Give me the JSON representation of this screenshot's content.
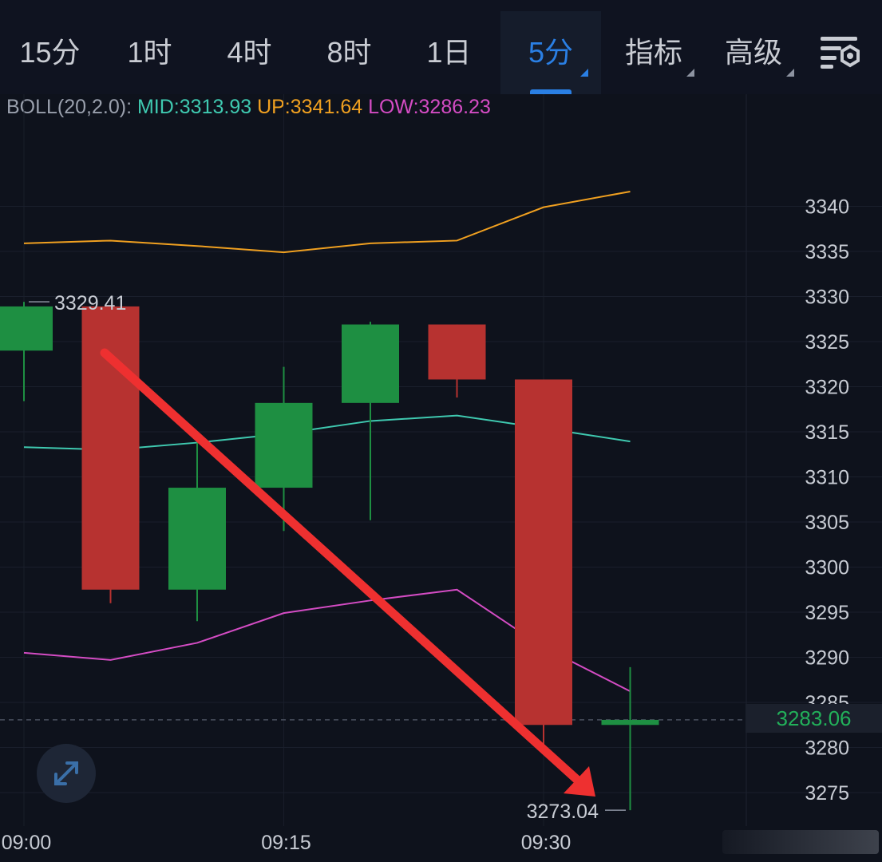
{
  "toolbar": {
    "tabs": [
      {
        "label": "15分",
        "active": false
      },
      {
        "label": "1时",
        "active": false
      },
      {
        "label": "4时",
        "active": false
      },
      {
        "label": "8时",
        "active": false
      },
      {
        "label": "1日",
        "active": false
      },
      {
        "label": "5分",
        "active": true
      },
      {
        "label": "指标",
        "active": false
      },
      {
        "label": "高级",
        "active": false
      }
    ],
    "settings_icon": "chart-settings-icon"
  },
  "indicator": {
    "name": "BOLL(20,2.0):",
    "mid_label": "MID:3313.93",
    "up_label": "UP:3341.64",
    "low_label": "LOW:3286.23"
  },
  "colors": {
    "up_candle": "#1e8f42",
    "down_candle": "#b73230",
    "mid": "#3fc9b0",
    "upper": "#f0a020",
    "lower": "#d44cc4",
    "arrow": "#ee3030",
    "active_tab": "#2a7fe4",
    "last_price": "#22b05a"
  },
  "chart_data": {
    "type": "candlestick",
    "time_labels": [
      "09:00",
      "09:15",
      "09:30"
    ],
    "y_ticks": [
      3275,
      3280,
      3285,
      3290,
      3295,
      3300,
      3305,
      3310,
      3315,
      3320,
      3325,
      3330,
      3335,
      3340
    ],
    "ylim": [
      3270.5,
      3341.5
    ],
    "candles": [
      {
        "time": "09:00",
        "open": 3324.0,
        "close": 3328.9,
        "high": 3329.41,
        "low": 3318.4
      },
      {
        "time": "09:05",
        "open": 3328.9,
        "close": 3297.5,
        "high": 3328.9,
        "low": 3296.0
      },
      {
        "time": "09:10",
        "open": 3297.5,
        "close": 3308.8,
        "high": 3313.8,
        "low": 3294.0
      },
      {
        "time": "09:15",
        "open": 3308.8,
        "close": 3318.2,
        "high": 3322.2,
        "low": 3304.0
      },
      {
        "time": "09:20",
        "open": 3318.2,
        "close": 3326.9,
        "high": 3327.2,
        "low": 3305.2
      },
      {
        "time": "09:25",
        "open": 3326.9,
        "close": 3320.8,
        "high": 3326.9,
        "low": 3318.8
      },
      {
        "time": "09:30",
        "open": 3320.8,
        "close": 3282.5,
        "high": 3320.8,
        "low": 3280.3
      },
      {
        "time": "09:35",
        "open": 3282.5,
        "close": 3283.06,
        "high": 3288.9,
        "low": 3273.04
      }
    ],
    "boll_mid": [
      3313.3,
      3313.0,
      3313.8,
      3314.8,
      3316.2,
      3316.8,
      3315.4,
      3313.93
    ],
    "boll_upper": [
      3335.9,
      3336.2,
      3335.6,
      3334.9,
      3335.9,
      3336.2,
      3339.9,
      3341.64
    ],
    "boll_lower": [
      3290.5,
      3289.7,
      3291.6,
      3294.9,
      3296.3,
      3297.5,
      3291.1,
      3286.23
    ],
    "high_label": "3329.41",
    "low_label": "3273.04",
    "last_price": 3283.06,
    "last_price_label": "3283.06",
    "annotation": "red arrow pointing down from the 09:05 candle toward the 3273.04 low"
  }
}
